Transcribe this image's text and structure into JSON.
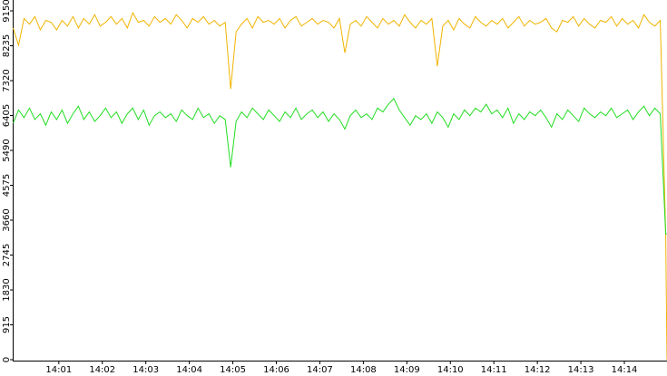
{
  "chart_data": {
    "type": "line",
    "x": [
      839.95,
      840.075,
      840.2,
      840.325,
      840.45,
      840.575,
      840.7,
      840.825,
      840.95,
      841.075,
      841.2,
      841.325,
      841.45,
      841.575,
      841.7,
      841.825,
      841.95,
      842.075,
      842.2,
      842.325,
      842.45,
      842.575,
      842.7,
      842.825,
      842.95,
      843.075,
      843.2,
      843.325,
      843.45,
      843.575,
      843.7,
      843.825,
      843.95,
      844.075,
      844.2,
      844.325,
      844.45,
      844.575,
      844.7,
      844.825,
      844.95,
      845.075,
      845.2,
      845.325,
      845.45,
      845.575,
      845.7,
      845.825,
      845.95,
      846.075,
      846.2,
      846.325,
      846.45,
      846.575,
      846.7,
      846.825,
      846.95,
      847.075,
      847.2,
      847.325,
      847.45,
      847.575,
      847.7,
      847.825,
      847.95,
      848.075,
      848.2,
      848.325,
      848.45,
      848.575,
      848.7,
      848.825,
      848.95,
      849.075,
      849.2,
      849.325,
      849.45,
      849.575,
      849.7,
      849.825,
      849.95,
      850.075,
      850.2,
      850.325,
      850.45,
      850.575,
      850.7,
      850.825,
      850.95,
      851.075,
      851.2,
      851.325,
      851.45,
      851.575,
      851.7,
      851.825,
      851.95,
      852.075,
      852.2,
      852.325,
      852.45,
      852.575,
      852.7,
      852.825,
      852.95,
      853.075,
      853.2,
      853.325,
      853.45,
      853.575,
      853.7,
      853.825,
      853.95,
      854.075,
      854.2,
      854.325,
      854.45,
      854.575,
      854.7,
      854.825,
      854.95,
      854.98
    ],
    "series": [
      {
        "color": "#f0b400",
        "values": [
          8700,
          8250,
          8950,
          8800,
          9000,
          8650,
          8900,
          8850,
          8650,
          8900,
          8750,
          9000,
          8700,
          8950,
          8800,
          9050,
          8750,
          8850,
          9000,
          8800,
          8950,
          8700,
          9100,
          8850,
          8900,
          8750,
          9000,
          8850,
          8950,
          8800,
          9050,
          8900,
          8700,
          8950,
          8850,
          9000,
          8800,
          8900,
          8750,
          8850,
          7100,
          8600,
          8800,
          8950,
          8700,
          9000,
          8850,
          8900,
          8800,
          8950,
          8700,
          8900,
          9000,
          8750,
          8850,
          8950,
          8800,
          8900,
          8850,
          8700,
          8950,
          8050,
          8800,
          8900,
          8750,
          9000,
          8850,
          8700,
          8950,
          8800,
          8900,
          8750,
          9050,
          8850,
          8700,
          8900,
          8800,
          8950,
          7700,
          8750,
          8900,
          8650,
          8950,
          8800,
          8700,
          9000,
          8850,
          8750,
          8900,
          8800,
          8950,
          8700,
          8850,
          9000,
          8750,
          8900,
          8800,
          8850,
          8950,
          8700,
          8600,
          8900,
          8850,
          9000,
          8750,
          8950,
          8800,
          8700,
          8900,
          8850,
          9000,
          8750,
          8950,
          8800,
          8900,
          8700,
          9050,
          8850,
          8750,
          8900,
          3300,
          0
        ]
      },
      {
        "color": "#22dd22",
        "values": [
          6200,
          6550,
          6350,
          6600,
          6300,
          6450,
          6150,
          6500,
          6300,
          6550,
          6200,
          6450,
          6650,
          6300,
          6500,
          6250,
          6400,
          6600,
          6350,
          6500,
          6200,
          6450,
          6600,
          6300,
          6550,
          6150,
          6400,
          6500,
          6350,
          6450,
          6250,
          6550,
          6400,
          6300,
          6600,
          6350,
          6450,
          6200,
          6400,
          6300,
          5050,
          6250,
          6500,
          6350,
          6600,
          6450,
          6300,
          6550,
          6400,
          6250,
          6500,
          6350,
          6600,
          6300,
          6450,
          6550,
          6350,
          6500,
          6250,
          6450,
          6300,
          6050,
          6400,
          6550,
          6350,
          6450,
          6300,
          6600,
          6500,
          6700,
          6850,
          6550,
          6350,
          6150,
          6400,
          6300,
          6450,
          6200,
          6500,
          6350,
          6100,
          6450,
          6300,
          6550,
          6400,
          6600,
          6500,
          6700,
          6450,
          6550,
          6350,
          6600,
          6200,
          6450,
          6300,
          6500,
          6400,
          6550,
          6350,
          6100,
          6450,
          6300,
          6550,
          6400,
          6250,
          6600,
          6450,
          6350,
          6500,
          6400,
          6600,
          6350,
          6450,
          6550,
          6300,
          6500,
          6650,
          6400,
          6600,
          6450,
          3300,
          3300
        ]
      }
    ],
    "xlim": [
      839.94,
      854.98
    ],
    "xticks": [
      {
        "value": 841,
        "label": "14:01"
      },
      {
        "value": 842,
        "label": "14:02"
      },
      {
        "value": 843,
        "label": "14:03"
      },
      {
        "value": 844,
        "label": "14:04"
      },
      {
        "value": 845,
        "label": "14:05"
      },
      {
        "value": 846,
        "label": "14:06"
      },
      {
        "value": 847,
        "label": "14:07"
      },
      {
        "value": 848,
        "label": "14:08"
      },
      {
        "value": 849,
        "label": "14:09"
      },
      {
        "value": 850,
        "label": "14:10"
      },
      {
        "value": 851,
        "label": "14:11"
      },
      {
        "value": 852,
        "label": "14:12"
      },
      {
        "value": 853,
        "label": "14:13"
      },
      {
        "value": 854,
        "label": "14:14"
      }
    ],
    "ylim": [
      0,
      9435
    ],
    "yticks": [
      0,
      915,
      1830,
      2745,
      3660,
      4575,
      5490,
      6405,
      7320,
      8235,
      9150
    ]
  }
}
